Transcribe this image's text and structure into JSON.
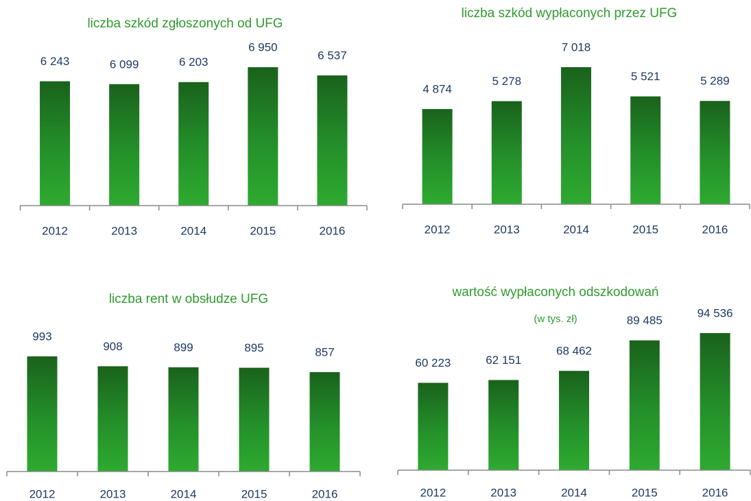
{
  "chart_data": [
    {
      "type": "bar",
      "title": "liczba szkód zgłoszonych od UFG",
      "categories": [
        "2012",
        "2013",
        "2014",
        "2015",
        "2016"
      ],
      "values": [
        6243,
        6099,
        6203,
        6950,
        6537
      ],
      "value_labels": [
        "6 243",
        "6 099",
        "6 203",
        "6 950",
        "6 537"
      ],
      "color": "#2ca22c",
      "ylim": [
        0,
        7000
      ]
    },
    {
      "type": "bar",
      "title": "liczba szkód wypłaconych przez UFG",
      "categories": [
        "2012",
        "2013",
        "2014",
        "2015",
        "2016"
      ],
      "values": [
        4874,
        5278,
        7018,
        5521,
        5289
      ],
      "value_labels": [
        "4 874",
        "5 278",
        "7 018",
        "5 521",
        "5 289"
      ],
      "color": "#2ca22c",
      "ylim": [
        0,
        7000
      ]
    },
    {
      "type": "bar",
      "title": "liczba rent w obsłudze UFG",
      "categories": [
        "2012",
        "2013",
        "2014",
        "2015",
        "2016"
      ],
      "values": [
        993,
        908,
        899,
        895,
        857
      ],
      "color": "#2ca22c",
      "ylim": [
        0,
        1000
      ]
    },
    {
      "type": "bar",
      "title": "wartość wypłaconych odszkodowań",
      "subtitle": "(w tys. zł)",
      "categories": [
        "2012",
        "2013",
        "2014",
        "2015",
        "2016"
      ],
      "values": [
        60223,
        62151,
        68462,
        89485,
        94536
      ],
      "value_labels": [
        "60 223",
        "62 151",
        "68 462",
        "89 485",
        "94 536"
      ],
      "color": "#2ca22c",
      "ylim": [
        0,
        100000
      ]
    }
  ]
}
